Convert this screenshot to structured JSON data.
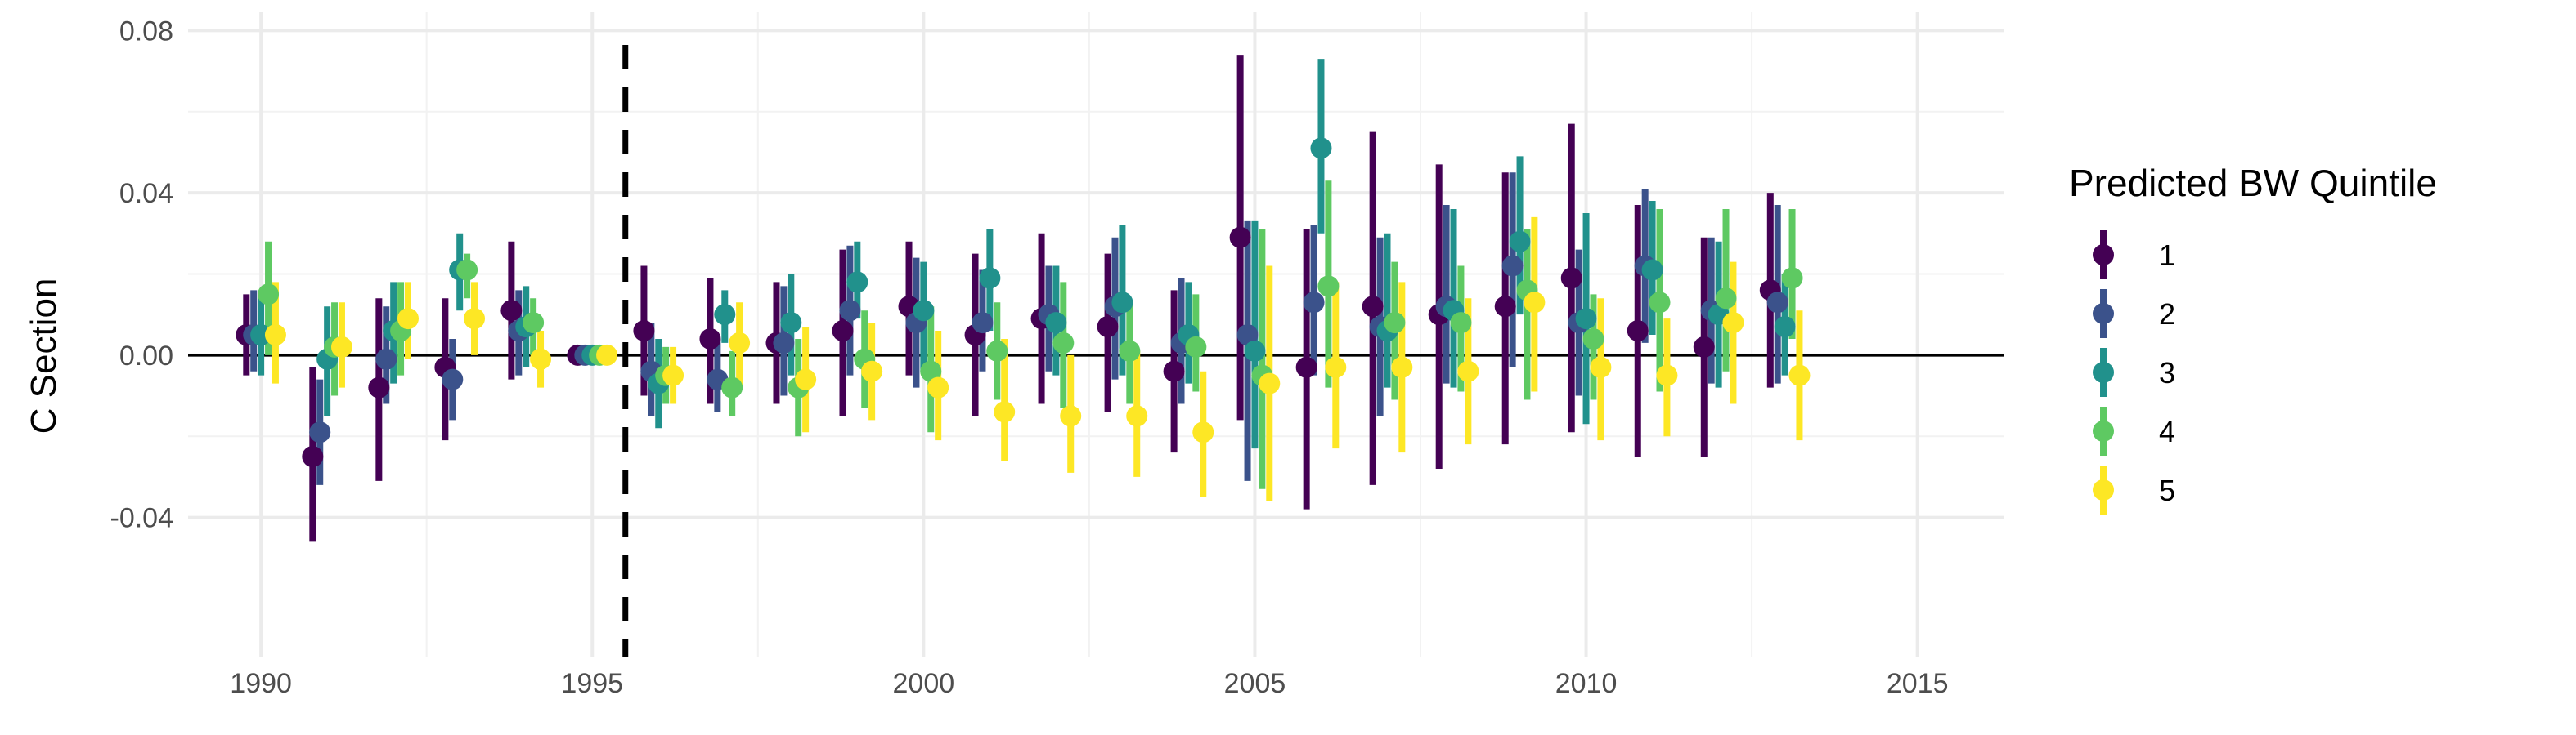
{
  "chart_data": {
    "type": "scatter",
    "subtype": "point-range event study (dodged by series)",
    "title": "",
    "xlabel": "",
    "ylabel": "C Section",
    "xlim": [
      1988.9,
      2016.3
    ],
    "ylim": [
      -0.0745,
      0.0845
    ],
    "x_ticks": [
      1990,
      1995,
      2000,
      2005,
      2010,
      2015
    ],
    "x_tick_labels": [
      "1990",
      "1995",
      "2000",
      "2005",
      "2010",
      "2015"
    ],
    "y_ticks": [
      -0.04,
      0.0,
      0.04,
      0.08
    ],
    "y_tick_labels": [
      "-0.04",
      "0.00",
      "0.04",
      "0.08"
    ],
    "grid": true,
    "reference_hline": 0.0,
    "reference_vline": 1995.5,
    "legend": {
      "title": "Predicted BW Quintile",
      "position": "right"
    },
    "x": [
      1990,
      1991,
      1992,
      1993,
      1994,
      1995,
      1996,
      1997,
      1998,
      1999,
      2000,
      2001,
      2002,
      2003,
      2004,
      2005,
      2006,
      2007,
      2008,
      2009,
      2010,
      2011,
      2012,
      2013
    ],
    "series": [
      {
        "name": "1",
        "color": "#440154",
        "values": [
          0.005,
          -0.025,
          -0.008,
          -0.003,
          0.011,
          0.0,
          0.006,
          0.004,
          0.003,
          0.006,
          0.012,
          0.005,
          0.009,
          0.007,
          -0.004,
          0.029,
          -0.003,
          0.012,
          0.01,
          0.012,
          0.019,
          0.006,
          0.002,
          0.016
        ],
        "lower": [
          -0.005,
          -0.046,
          -0.031,
          -0.021,
          -0.006,
          0.0,
          -0.01,
          -0.012,
          -0.012,
          -0.015,
          -0.005,
          -0.015,
          -0.012,
          -0.014,
          -0.024,
          -0.016,
          -0.038,
          -0.032,
          -0.028,
          -0.022,
          -0.019,
          -0.025,
          -0.025,
          -0.008
        ],
        "upper": [
          0.015,
          -0.003,
          0.014,
          0.014,
          0.028,
          0.0,
          0.022,
          0.019,
          0.018,
          0.026,
          0.028,
          0.025,
          0.03,
          0.025,
          0.016,
          0.074,
          0.031,
          0.055,
          0.047,
          0.045,
          0.057,
          0.037,
          0.029,
          0.04
        ]
      },
      {
        "name": "2",
        "color": "#3b528b",
        "values": [
          0.005,
          -0.019,
          -0.001,
          -0.006,
          0.006,
          0.0,
          -0.004,
          -0.006,
          0.003,
          0.011,
          0.008,
          0.008,
          0.01,
          0.012,
          0.003,
          0.005,
          0.013,
          0.007,
          0.012,
          0.022,
          0.008,
          0.022,
          0.011,
          0.013
        ],
        "lower": [
          -0.004,
          -0.032,
          -0.012,
          -0.016,
          -0.005,
          0.0,
          -0.015,
          -0.014,
          -0.01,
          -0.005,
          -0.008,
          -0.004,
          -0.004,
          -0.006,
          -0.012,
          -0.031,
          -0.005,
          -0.015,
          -0.007,
          -0.003,
          -0.01,
          0.003,
          -0.007,
          -0.007
        ],
        "upper": [
          0.016,
          -0.006,
          0.012,
          0.004,
          0.016,
          0.0,
          0.008,
          0.004,
          0.017,
          0.027,
          0.024,
          0.021,
          0.022,
          0.029,
          0.019,
          0.033,
          0.032,
          0.029,
          0.037,
          0.045,
          0.026,
          0.041,
          0.029,
          0.037
        ]
      },
      {
        "name": "3",
        "color": "#21918c",
        "values": [
          0.005,
          -0.001,
          0.006,
          0.021,
          0.007,
          0.0,
          -0.007,
          0.01,
          0.008,
          0.018,
          0.011,
          0.019,
          0.008,
          0.013,
          0.005,
          0.001,
          0.051,
          0.006,
          0.011,
          0.028,
          0.009,
          0.021,
          0.01,
          0.007
        ],
        "lower": [
          -0.005,
          -0.015,
          -0.007,
          0.011,
          -0.003,
          0.0,
          -0.018,
          0.003,
          -0.005,
          0.009,
          -0.004,
          0.006,
          -0.005,
          -0.005,
          -0.007,
          -0.023,
          0.03,
          -0.008,
          -0.008,
          0.01,
          -0.017,
          0.005,
          -0.008,
          -0.005
        ],
        "upper": [
          0.014,
          0.012,
          0.018,
          0.03,
          0.017,
          0.0,
          0.004,
          0.016,
          0.02,
          0.028,
          0.023,
          0.031,
          0.022,
          0.032,
          0.018,
          0.033,
          0.073,
          0.03,
          0.036,
          0.049,
          0.035,
          0.038,
          0.028,
          0.02
        ]
      },
      {
        "name": "4",
        "color": "#5ec962",
        "values": [
          0.015,
          0.002,
          0.006,
          0.021,
          0.008,
          0.0,
          -0.005,
          -0.008,
          -0.008,
          -0.001,
          -0.004,
          0.001,
          0.003,
          0.001,
          0.002,
          -0.005,
          0.017,
          0.008,
          0.008,
          0.016,
          0.004,
          0.013,
          0.014,
          0.019
        ],
        "lower": [
          0.0,
          -0.01,
          -0.005,
          0.014,
          0.0,
          0.0,
          -0.012,
          -0.015,
          -0.02,
          -0.013,
          -0.019,
          -0.011,
          -0.013,
          -0.012,
          -0.009,
          -0.033,
          -0.008,
          -0.011,
          -0.009,
          -0.011,
          -0.011,
          -0.009,
          -0.004,
          0.004
        ],
        "upper": [
          0.028,
          0.013,
          0.018,
          0.025,
          0.014,
          0.0,
          0.002,
          0.001,
          0.004,
          0.011,
          0.012,
          0.013,
          0.018,
          0.013,
          0.015,
          0.031,
          0.043,
          0.023,
          0.022,
          0.031,
          0.015,
          0.036,
          0.036,
          0.036
        ]
      },
      {
        "name": "5",
        "color": "#fde725",
        "values": [
          0.005,
          0.002,
          0.009,
          0.009,
          -0.001,
          0.0,
          -0.005,
          0.003,
          -0.006,
          -0.004,
          -0.008,
          -0.014,
          -0.015,
          -0.015,
          -0.019,
          -0.007,
          -0.003,
          -0.003,
          -0.004,
          0.013,
          -0.003,
          -0.005,
          0.008,
          -0.005
        ],
        "lower": [
          -0.007,
          -0.008,
          -0.001,
          0.0,
          -0.008,
          0.0,
          -0.012,
          -0.008,
          -0.019,
          -0.016,
          -0.021,
          -0.026,
          -0.029,
          -0.03,
          -0.035,
          -0.036,
          -0.023,
          -0.024,
          -0.022,
          -0.009,
          -0.021,
          -0.02,
          -0.012,
          -0.021
        ],
        "upper": [
          0.018,
          0.013,
          0.018,
          0.018,
          0.006,
          0.0,
          0.002,
          0.013,
          0.007,
          0.008,
          0.006,
          0.004,
          0.0,
          0.001,
          -0.004,
          0.022,
          0.018,
          0.018,
          0.014,
          0.034,
          0.014,
          0.009,
          0.023,
          0.011
        ]
      }
    ]
  }
}
